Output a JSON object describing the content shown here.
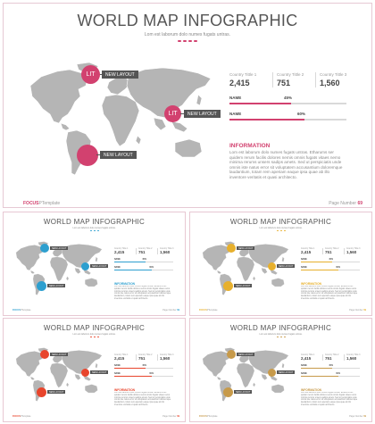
{
  "title": "WORLD MAP INFOGRAPHIC",
  "subtitle": "Lom est laborum dolo numes fugats untras.",
  "pin_label": "NEW LAYOUT",
  "pin_icon": "lit-icon",
  "pin_text": "LIT",
  "stats": [
    {
      "label": "Country Tittle 1",
      "value": "2,415"
    },
    {
      "label": "Country Tittle 2",
      "value": "751"
    },
    {
      "label": "Country Tittle 3",
      "value": "1,560"
    }
  ],
  "bars": [
    {
      "label": "NAME",
      "percent_text": "45%",
      "fraction": 0.45
    },
    {
      "label": "NAME",
      "percent_text": "60%",
      "fraction": 0.6
    }
  ],
  "info": {
    "heading": "INFORMATION",
    "body": "Lom est laborum dolo numes fugats untras. Etharums ser quidem rerum facilis dolores nemis omnis fugats vitaes nemo minima rerums unsers sadips amets. Sed ut perspiciatis unde omnis iste natus error sit voluptatem accusantium doloremque laudantium, totam rem aperiam eaque ipsa quae ab illo inventore veritatis et quasi architecto."
  },
  "footer": {
    "brand": "FOCUS",
    "brand_suffix": "PTemplate",
    "page_label": "Page Number",
    "page_number": "69"
  },
  "colors": {
    "main_accent": "#d2416f",
    "themes": [
      "#2d9fcf",
      "#e7b02d",
      "#e8452c",
      "#c79a4a"
    ]
  }
}
